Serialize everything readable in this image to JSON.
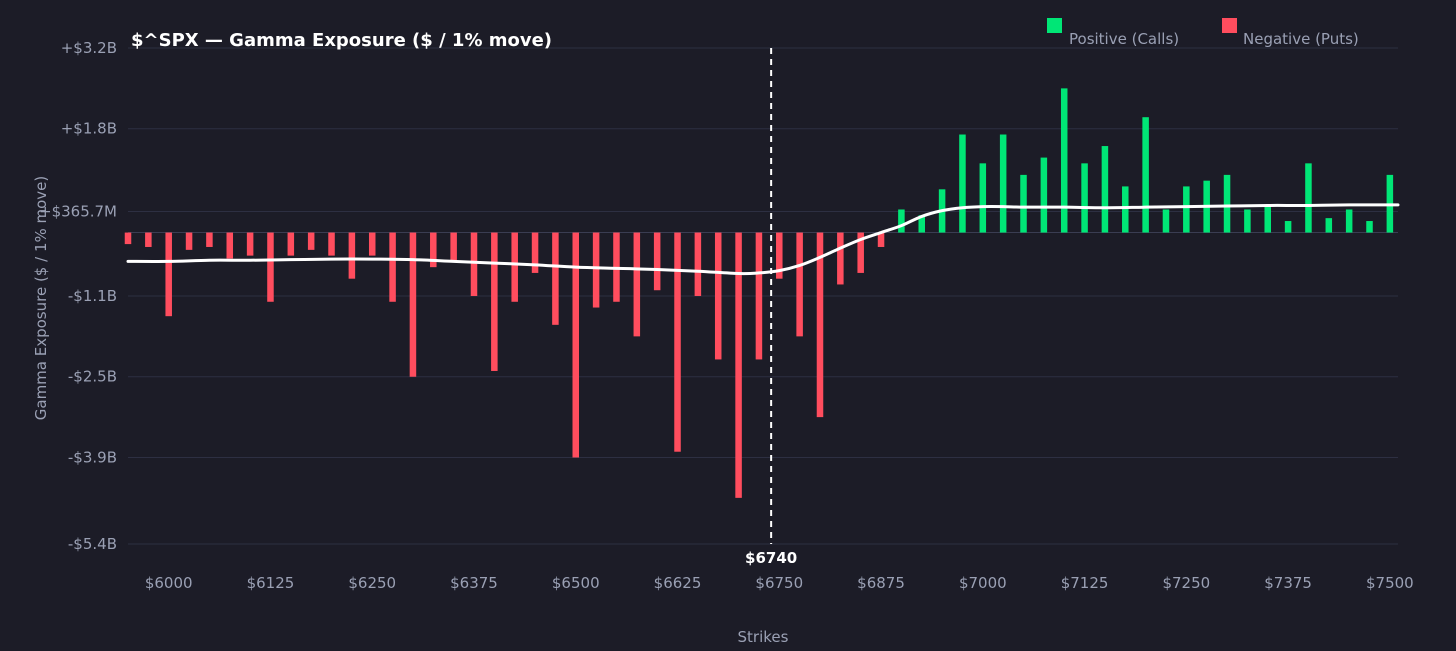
{
  "chart_data": {
    "type": "bar",
    "title": "$^SPX — Gamma Exposure ($ / 1% move)",
    "xlabel": "Strikes",
    "ylabel": "Gamma Exposure ($ / 1% move)",
    "legend": {
      "placement": "top-right",
      "entries": [
        {
          "label": "Positive (Calls)",
          "color": "#00e676"
        },
        {
          "label": "Negative (Puts)",
          "color": "#ff4d5e"
        }
      ]
    },
    "spot": {
      "value": 6740,
      "label": "$6740"
    },
    "xlim": [
      5950,
      7510
    ],
    "ylim": [
      -5.4,
      3.2
    ],
    "x_ticks": [
      {
        "value": 6000,
        "label": "$6000"
      },
      {
        "value": 6125,
        "label": "$6125"
      },
      {
        "value": 6250,
        "label": "$6250"
      },
      {
        "value": 6375,
        "label": "$6375"
      },
      {
        "value": 6500,
        "label": "$6500"
      },
      {
        "value": 6625,
        "label": "$6625"
      },
      {
        "value": 6750,
        "label": "$6750"
      },
      {
        "value": 6875,
        "label": "$6875"
      },
      {
        "value": 7000,
        "label": "$7000"
      },
      {
        "value": 7125,
        "label": "$7125"
      },
      {
        "value": 7250,
        "label": "$7250"
      },
      {
        "value": 7375,
        "label": "$7375"
      },
      {
        "value": 7500,
        "label": "$7500"
      }
    ],
    "y_ticks": [
      {
        "value": 3.2,
        "label": "+$3.2B"
      },
      {
        "value": 1.8,
        "label": "+$1.8B"
      },
      {
        "value": 0.3657,
        "label": "+$365.7M"
      },
      {
        "value": -1.1,
        "label": "-$1.1B"
      },
      {
        "value": -2.5,
        "label": "-$2.5B"
      },
      {
        "value": -3.9,
        "label": "-$3.9B"
      },
      {
        "value": -5.4,
        "label": "-$5.4B"
      }
    ],
    "grid": true,
    "colors": {
      "positive": "#00e676",
      "negative": "#ff4d5e",
      "cumulative": "#ffffff",
      "spot_line": "#ffffff"
    },
    "series": [
      {
        "kind": "bars",
        "x": [
          5950,
          5975,
          6000,
          6025,
          6050,
          6075,
          6100,
          6125,
          6150,
          6175,
          6200,
          6225,
          6250,
          6275,
          6300,
          6325,
          6350,
          6375,
          6400,
          6425,
          6450,
          6475,
          6500,
          6525,
          6550,
          6575,
          6600,
          6625,
          6650,
          6675,
          6700,
          6725,
          6750,
          6775,
          6800,
          6825,
          6850,
          6875,
          6900,
          6925,
          6950,
          6975,
          7000,
          7025,
          7050,
          7075,
          7100,
          7125,
          7150,
          7175,
          7200,
          7225,
          7250,
          7275,
          7300,
          7325,
          7350,
          7375,
          7400,
          7425,
          7450,
          7475,
          7500
        ],
        "values": [
          -0.2,
          -0.25,
          -1.45,
          -0.3,
          -0.25,
          -0.45,
          -0.4,
          -1.2,
          -0.4,
          -0.3,
          -0.4,
          -0.8,
          -0.4,
          -1.2,
          -2.5,
          -0.6,
          -0.5,
          -1.1,
          -2.4,
          -1.2,
          -0.7,
          -1.6,
          -3.9,
          -1.3,
          -1.2,
          -1.8,
          -1.0,
          -3.8,
          -1.1,
          -2.2,
          -4.6,
          -2.2,
          -0.8,
          -1.8,
          -3.2,
          -0.9,
          -0.7,
          -0.25,
          0.4,
          0.3,
          0.75,
          1.7,
          1.2,
          1.7,
          1.0,
          1.3,
          2.5,
          1.2,
          1.5,
          0.8,
          2.0,
          0.4,
          0.8,
          0.9,
          1.0,
          0.4,
          0.45,
          0.2,
          1.2,
          0.25,
          0.4,
          0.2,
          1.0
        ]
      },
      {
        "kind": "line",
        "name": "",
        "x": [
          5950,
          6000,
          6050,
          6100,
          6150,
          6200,
          6250,
          6300,
          6350,
          6400,
          6450,
          6500,
          6550,
          6600,
          6650,
          6700,
          6725,
          6750,
          6775,
          6800,
          6825,
          6850,
          6875,
          6900,
          6925,
          6950,
          6975,
          7000,
          7025,
          7050,
          7100,
          7150,
          7200,
          7250,
          7300,
          7350,
          7400,
          7450,
          7510
        ],
        "values": [
          -0.5,
          -0.5,
          -0.48,
          -0.48,
          -0.47,
          -0.46,
          -0.46,
          -0.47,
          -0.5,
          -0.53,
          -0.56,
          -0.6,
          -0.62,
          -0.64,
          -0.67,
          -0.71,
          -0.7,
          -0.66,
          -0.57,
          -0.43,
          -0.27,
          -0.12,
          0.0,
          0.12,
          0.28,
          0.38,
          0.43,
          0.45,
          0.45,
          0.44,
          0.44,
          0.43,
          0.44,
          0.45,
          0.46,
          0.47,
          0.47,
          0.48,
          0.48
        ]
      }
    ]
  }
}
